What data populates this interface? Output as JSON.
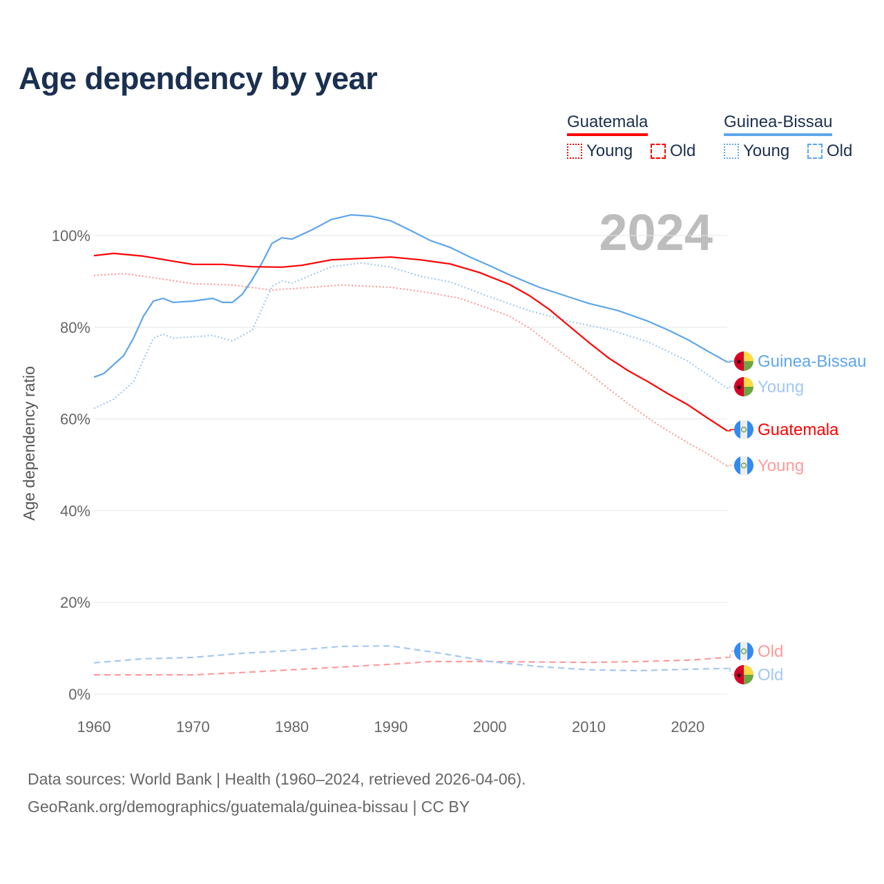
{
  "title": "Age dependency by year",
  "legend": {
    "countries": [
      {
        "name": "Guatemala",
        "color": "#ff0000",
        "young_label": "Young",
        "old_label": "Old"
      },
      {
        "name": "Guinea-Bissau",
        "color": "#5da5ea",
        "young_label": "Young",
        "old_label": "Old"
      }
    ]
  },
  "year_watermark": "2024",
  "source": {
    "line1": "Data sources: World Bank | Health (1960–2024, retrieved 2026-04-06).",
    "line2": "GeoRank.org/demographics/guatemala/guinea-bissau | CC BY"
  },
  "chart_data": {
    "type": "line",
    "title": "Age dependency by year",
    "xlabel": "",
    "ylabel": "Age dependency ratio",
    "xlim": [
      1960,
      2024
    ],
    "ylim": [
      0,
      105
    ],
    "x_ticks": [
      1960,
      1970,
      1980,
      1990,
      2000,
      2010,
      2020
    ],
    "y_ticks": [
      0,
      20,
      40,
      60,
      80,
      100
    ],
    "y_tick_labels": [
      "0%",
      "20%",
      "40%",
      "60%",
      "80%",
      "100%"
    ],
    "grid": true,
    "legend_position": "top-right",
    "series": [
      {
        "name": "Guinea-Bissau",
        "end_label": "Guinea-Bissau",
        "country": "Guinea-Bissau",
        "color": "#5da5ea",
        "style": "solid",
        "points": [
          [
            1960,
            69.1
          ],
          [
            1961,
            69.9
          ],
          [
            1963,
            73.8
          ],
          [
            1964,
            77.6
          ],
          [
            1965,
            82.4
          ],
          [
            1966,
            85.7
          ],
          [
            1967,
            86.3
          ],
          [
            1968,
            85.4
          ],
          [
            1970,
            85.7
          ],
          [
            1972,
            86.3
          ],
          [
            1973,
            85.4
          ],
          [
            1974,
            85.4
          ],
          [
            1975,
            87.2
          ],
          [
            1976,
            90.4
          ],
          [
            1977,
            94.1
          ],
          [
            1978,
            98.3
          ],
          [
            1979,
            99.5
          ],
          [
            1980,
            99.2
          ],
          [
            1982,
            101.2
          ],
          [
            1984,
            103.5
          ],
          [
            1986,
            104.5
          ],
          [
            1988,
            104.2
          ],
          [
            1990,
            103.2
          ],
          [
            1992,
            101.1
          ],
          [
            1994,
            98.9
          ],
          [
            1996,
            97.4
          ],
          [
            1998,
            95.3
          ],
          [
            2000,
            93.4
          ],
          [
            2002,
            91.4
          ],
          [
            2005,
            88.7
          ],
          [
            2008,
            86.6
          ],
          [
            2010,
            85.2
          ],
          [
            2013,
            83.6
          ],
          [
            2016,
            81.3
          ],
          [
            2018,
            79.4
          ],
          [
            2020,
            77.3
          ],
          [
            2022,
            74.8
          ],
          [
            2024,
            72.4
          ]
        ]
      },
      {
        "name": "Guinea-Bissau Young",
        "end_label": "Young",
        "country": "Guinea-Bissau",
        "color": "#a3c8f0",
        "style": "dotted",
        "points": [
          [
            1960,
            62.3
          ],
          [
            1962,
            64.3
          ],
          [
            1964,
            68.1
          ],
          [
            1966,
            77.6
          ],
          [
            1967,
            78.5
          ],
          [
            1968,
            77.6
          ],
          [
            1972,
            78.2
          ],
          [
            1974,
            77.0
          ],
          [
            1976,
            79.4
          ],
          [
            1978,
            88.9
          ],
          [
            1979,
            90.1
          ],
          [
            1980,
            89.6
          ],
          [
            1984,
            93.2
          ],
          [
            1987,
            94.0
          ],
          [
            1990,
            93.1
          ],
          [
            1993,
            91.1
          ],
          [
            1996,
            89.9
          ],
          [
            2000,
            86.6
          ],
          [
            2004,
            83.6
          ],
          [
            2008,
            81.3
          ],
          [
            2012,
            79.5
          ],
          [
            2016,
            76.8
          ],
          [
            2020,
            72.6
          ],
          [
            2024,
            66.7
          ]
        ]
      },
      {
        "name": "Guatemala",
        "end_label": "Guatemala",
        "country": "Guatemala",
        "color": "#ff0000",
        "style": "solid",
        "points": [
          [
            1960,
            95.6
          ],
          [
            1962,
            96.1
          ],
          [
            1965,
            95.5
          ],
          [
            1968,
            94.4
          ],
          [
            1970,
            93.7
          ],
          [
            1973,
            93.7
          ],
          [
            1976,
            93.2
          ],
          [
            1979,
            93.1
          ],
          [
            1981,
            93.5
          ],
          [
            1984,
            94.7
          ],
          [
            1987,
            95.0
          ],
          [
            1990,
            95.3
          ],
          [
            1993,
            94.7
          ],
          [
            1996,
            93.8
          ],
          [
            1999,
            91.9
          ],
          [
            2002,
            89.3
          ],
          [
            2004,
            86.9
          ],
          [
            2006,
            83.9
          ],
          [
            2008,
            80.3
          ],
          [
            2010,
            76.7
          ],
          [
            2012,
            73.3
          ],
          [
            2014,
            70.5
          ],
          [
            2016,
            68.1
          ],
          [
            2018,
            65.5
          ],
          [
            2020,
            63.1
          ],
          [
            2022,
            60.2
          ],
          [
            2024,
            57.4
          ]
        ]
      },
      {
        "name": "Guatemala Young",
        "end_label": "Young",
        "country": "Guatemala",
        "color": "#ff9a9a",
        "style": "dotted",
        "points": [
          [
            1960,
            91.3
          ],
          [
            1963,
            91.7
          ],
          [
            1966,
            90.8
          ],
          [
            1970,
            89.5
          ],
          [
            1974,
            89.2
          ],
          [
            1978,
            88.1
          ],
          [
            1982,
            88.7
          ],
          [
            1985,
            89.2
          ],
          [
            1990,
            88.7
          ],
          [
            1994,
            87.5
          ],
          [
            1997,
            86.3
          ],
          [
            2000,
            84.0
          ],
          [
            2002,
            82.4
          ],
          [
            2004,
            79.8
          ],
          [
            2006,
            76.5
          ],
          [
            2008,
            73.3
          ],
          [
            2010,
            70.0
          ],
          [
            2012,
            66.6
          ],
          [
            2014,
            63.3
          ],
          [
            2016,
            60.2
          ],
          [
            2018,
            57.4
          ],
          [
            2020,
            54.8
          ],
          [
            2022,
            52.4
          ],
          [
            2024,
            49.7
          ]
        ]
      },
      {
        "name": "Guatemala Old",
        "end_label": "Old",
        "country": "Guatemala",
        "color": "#ff9a9a",
        "style": "dashed",
        "points": [
          [
            1960,
            4.2
          ],
          [
            1970,
            4.2
          ],
          [
            1975,
            4.7
          ],
          [
            1980,
            5.3
          ],
          [
            1985,
            5.9
          ],
          [
            1990,
            6.5
          ],
          [
            1994,
            7.1
          ],
          [
            2000,
            7.1
          ],
          [
            2010,
            6.9
          ],
          [
            2015,
            7.1
          ],
          [
            2020,
            7.4
          ],
          [
            2024,
            8.0
          ]
        ]
      },
      {
        "name": "Guinea-Bissau Old",
        "end_label": "Old",
        "country": "Guinea-Bissau",
        "color": "#a3c8f0",
        "style": "dashed",
        "points": [
          [
            1960,
            6.8
          ],
          [
            1965,
            7.7
          ],
          [
            1970,
            8.0
          ],
          [
            1975,
            8.9
          ],
          [
            1980,
            9.5
          ],
          [
            1985,
            10.4
          ],
          [
            1990,
            10.5
          ],
          [
            1995,
            8.9
          ],
          [
            2000,
            7.1
          ],
          [
            2005,
            6.0
          ],
          [
            2010,
            5.3
          ],
          [
            2015,
            5.1
          ],
          [
            2020,
            5.4
          ],
          [
            2024,
            5.6
          ]
        ]
      }
    ]
  }
}
